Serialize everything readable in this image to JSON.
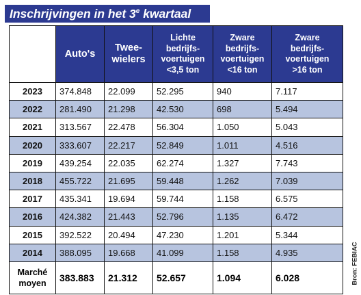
{
  "title": {
    "main": "Inschrijvingen in het 3",
    "superscript": "e",
    "suffix": " kwartaal"
  },
  "headers": [
    {
      "line1": "Auto's",
      "line2": "",
      "line3": "",
      "line4": ""
    },
    {
      "line1": "Twee-",
      "line2": "wielers",
      "line3": "",
      "line4": ""
    },
    {
      "line1": "Lichte",
      "line2": "bedrijfs-",
      "line3": "voertuigen",
      "line4": "<3,5 ton"
    },
    {
      "line1": "Zware",
      "line2": "bedrijfs-",
      "line3": "voertuigen",
      "line4": "<16 ton"
    },
    {
      "line1": "Zware",
      "line2": "bedrijfs-",
      "line3": "voertuigen",
      "line4": ">16 ton"
    }
  ],
  "rows": [
    {
      "year": "2023",
      "values": [
        "374.848",
        "22.099",
        "52.295",
        "940",
        "7.117"
      ]
    },
    {
      "year": "2022",
      "values": [
        "281.490",
        "21.298",
        "42.530",
        "698",
        "5.494"
      ]
    },
    {
      "year": "2021",
      "values": [
        "313.567",
        "22.478",
        "56.304",
        "1.050",
        "5.043"
      ]
    },
    {
      "year": "2020",
      "values": [
        "333.607",
        "22.217",
        "52.849",
        "1.011",
        "4.516"
      ]
    },
    {
      "year": "2019",
      "values": [
        "439.254",
        "22.035",
        "62.274",
        "1.327",
        "7.743"
      ]
    },
    {
      "year": "2018",
      "values": [
        "455.722",
        "21.695",
        "59.448",
        "1.262",
        "7.039"
      ]
    },
    {
      "year": "2017",
      "values": [
        "435.341",
        "19.694",
        "59.744",
        "1.158",
        "6.575"
      ]
    },
    {
      "year": "2016",
      "values": [
        "424.382",
        "21.443",
        "52.796",
        "1.135",
        "6.472"
      ]
    },
    {
      "year": "2015",
      "values": [
        "392.522",
        "20.494",
        "47.230",
        "1.201",
        "5.344"
      ]
    },
    {
      "year": "2014",
      "values": [
        "388.095",
        "19.668",
        "41.099",
        "1.158",
        "4.935"
      ]
    }
  ],
  "average": {
    "label_line1": "Marché",
    "label_line2": "moyen",
    "values": [
      "383.883",
      "21.312",
      "52.657",
      "1.094",
      "6.028"
    ]
  },
  "source": "Bron: FEBIAC",
  "colors": {
    "header_blue": "#2c3a91",
    "row_shade": "#b7c4df",
    "border": "#101010"
  }
}
